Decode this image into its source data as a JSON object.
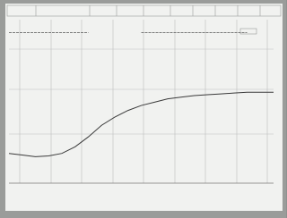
{
  "chart_data": {
    "type": "line",
    "x": [
      0,
      5,
      10,
      15,
      20,
      25,
      30,
      35,
      40,
      45,
      50,
      55,
      60,
      65,
      70,
      75,
      80,
      85,
      90,
      95,
      100
    ],
    "series": [
      {
        "color": "#3a3a3a",
        "values": [
          18,
          17,
          16,
          16.5,
          18,
          22,
          28,
          35,
          40,
          44,
          47,
          49,
          51,
          52,
          53,
          53.5,
          54,
          54.5,
          55,
          55,
          55
        ]
      },
      {
        "color": "#555555",
        "values": [
          91,
          91,
          91,
          91,
          91,
          91,
          91,
          null,
          null,
          null,
          91,
          91,
          91,
          91,
          91,
          91,
          91,
          91,
          91,
          null,
          null
        ]
      }
    ],
    "xlim": [
      0,
      100
    ],
    "ylim": [
      0,
      100
    ]
  }
}
